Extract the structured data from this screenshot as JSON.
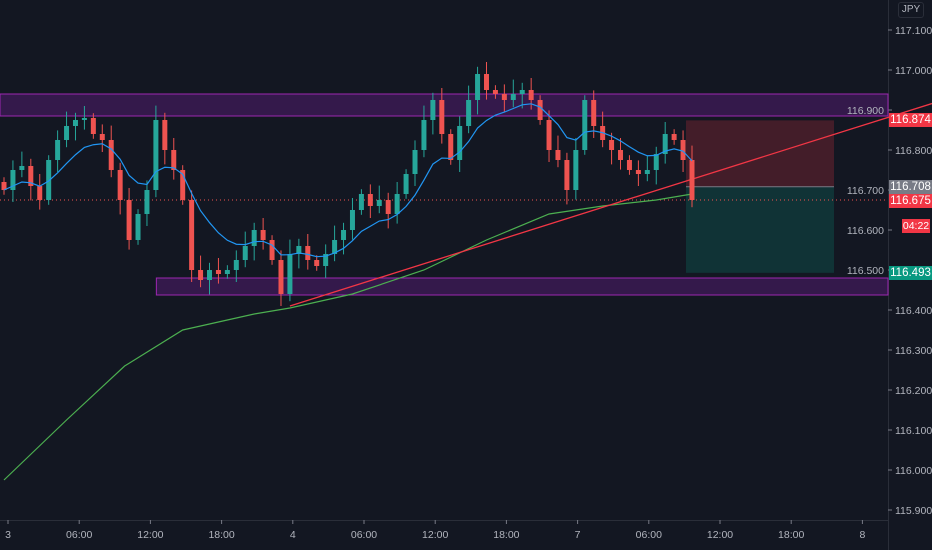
{
  "symbol_currency": "JPY",
  "chart_data": {
    "type": "candlestick",
    "ylim": [
      115.875,
      117.175
    ],
    "y_ticks": [
      "117.100",
      "117.000",
      "116.900",
      "116.800",
      "116.700",
      "116.600",
      "116.500",
      "116.400",
      "116.300",
      "116.200",
      "116.100",
      "116.000",
      "115.900"
    ],
    "x_ticks": [
      "3",
      "06:00",
      "12:00",
      "18:00",
      "4",
      "06:00",
      "12:00",
      "18:00",
      "7",
      "06:00",
      "12:00",
      "18:00",
      "8"
    ],
    "closes": [
      116.7,
      116.75,
      116.76,
      116.71,
      116.675,
      116.775,
      116.825,
      116.86,
      116.875,
      116.88,
      116.84,
      116.825,
      116.75,
      116.675,
      116.575,
      116.64,
      116.7,
      116.875,
      116.8,
      116.75,
      116.675,
      116.5,
      116.475,
      116.5,
      116.49,
      116.5,
      116.525,
      116.56,
      116.6,
      116.575,
      116.525,
      116.44,
      116.54,
      116.56,
      116.525,
      116.51,
      116.54,
      116.575,
      116.6,
      116.65,
      116.69,
      116.66,
      116.675,
      116.64,
      116.69,
      116.74,
      116.8,
      116.875,
      116.925,
      116.84,
      116.775,
      116.86,
      116.925,
      116.99,
      116.95,
      116.94,
      116.925,
      116.94,
      116.95,
      116.925,
      116.875,
      116.8,
      116.775,
      116.7,
      116.8,
      116.925,
      116.86,
      116.825,
      116.8,
      116.775,
      116.75,
      116.74,
      116.75,
      116.79,
      116.84,
      116.825,
      116.775,
      116.675
    ],
    "ma_long": [
      [
        0,
        115.975
      ],
      [
        7,
        116.125
      ],
      [
        13.5,
        116.26
      ],
      [
        20,
        116.35
      ],
      [
        28,
        116.39
      ],
      [
        32,
        116.405
      ],
      [
        39,
        116.44
      ],
      [
        47,
        116.5
      ],
      [
        54,
        116.575
      ],
      [
        61,
        116.64
      ],
      [
        67,
        116.66
      ],
      [
        73,
        116.675
      ],
      [
        77,
        116.69
      ]
    ],
    "trendline": [
      [
        32,
        116.41
      ],
      [
        77,
        116.727
      ]
    ],
    "zones": [
      {
        "from_index": 0,
        "top": 116.94,
        "bottom": 116.885
      },
      {
        "from_index": 17.5,
        "top": 116.48,
        "bottom": 116.4375
      }
    ],
    "position": {
      "entry": 116.708,
      "stop": 116.874,
      "target": 116.493
    },
    "last_price": 116.675,
    "price_tags": [
      {
        "label": "116.874",
        "value": 116.874,
        "color": "#f23645"
      },
      {
        "label": "116.708",
        "value": 116.708,
        "color": "#787b86"
      },
      {
        "label": "116.675",
        "value": 116.675,
        "color": "#f23645"
      },
      {
        "label": "116.493",
        "value": 116.493,
        "color": "#089981"
      }
    ],
    "countdown": "04:22",
    "colors": {
      "up": "#26a69a",
      "down": "#ef5350",
      "ema": "#2962ff",
      "ma_long": "#4caf50",
      "trend": "#f23645",
      "zone": "#9c27b0"
    }
  }
}
